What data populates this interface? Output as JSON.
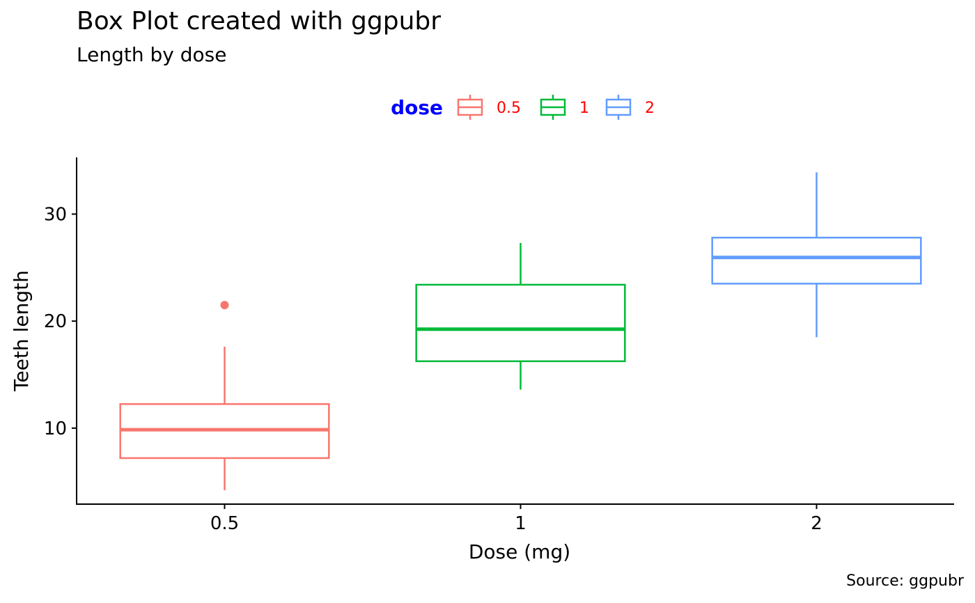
{
  "chart_data": {
    "type": "box",
    "title": "Box Plot created with ggpubr",
    "subtitle": "Length by dose",
    "caption": "Source: ggpubr",
    "xlabel": "Dose (mg)",
    "ylabel": "Teeth length",
    "ylim": [
      2.9,
      35.3
    ],
    "yticks": [
      10,
      20,
      30
    ],
    "grid": false,
    "legend": {
      "title": "dose",
      "position": "top",
      "title_color": "#0000FF",
      "label_color": "#FF0000"
    },
    "categories": [
      "0.5",
      "1",
      "2"
    ],
    "series": [
      {
        "name": "0.5",
        "color": "#F8766D",
        "min": 4.2,
        "q1": 7.2,
        "median": 9.85,
        "q3": 12.25,
        "max": 17.6,
        "outliers": [
          21.5
        ]
      },
      {
        "name": "1",
        "color": "#00BA38",
        "min": 13.6,
        "q1": 16.25,
        "median": 19.25,
        "q3": 23.4,
        "max": 27.3,
        "outliers": []
      },
      {
        "name": "2",
        "color": "#619CFF",
        "min": 18.5,
        "q1": 23.5,
        "median": 25.95,
        "q3": 27.8,
        "max": 33.9,
        "outliers": []
      }
    ]
  }
}
